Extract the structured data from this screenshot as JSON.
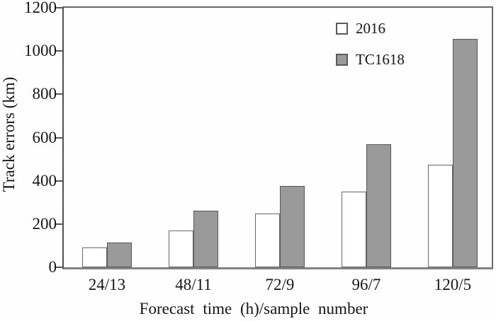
{
  "figure": {
    "background": "#fefefe",
    "text_color": "#161616",
    "axis_color": "#6a6a6a"
  },
  "chart_data": {
    "type": "bar",
    "title": "",
    "xlabel": "Forecast time (h)/sample number",
    "ylabel": "Track errors (km)",
    "categories": [
      "24/13",
      "48/11",
      "72/9",
      "96/7",
      "120/5"
    ],
    "series": [
      {
        "name": "2016",
        "color": "#ffffff",
        "border": "#686868",
        "values": [
          90,
          170,
          250,
          350,
          475
        ]
      },
      {
        "name": "TC1618",
        "color": "#9a9a9a",
        "border": "#585858",
        "values": [
          115,
          260,
          375,
          570,
          1055
        ]
      }
    ],
    "ylim": [
      0,
      1200
    ],
    "yticks": [
      0,
      200,
      400,
      600,
      800,
      1000,
      1200
    ],
    "grid": false,
    "legend_position": "upper-right-inside"
  }
}
